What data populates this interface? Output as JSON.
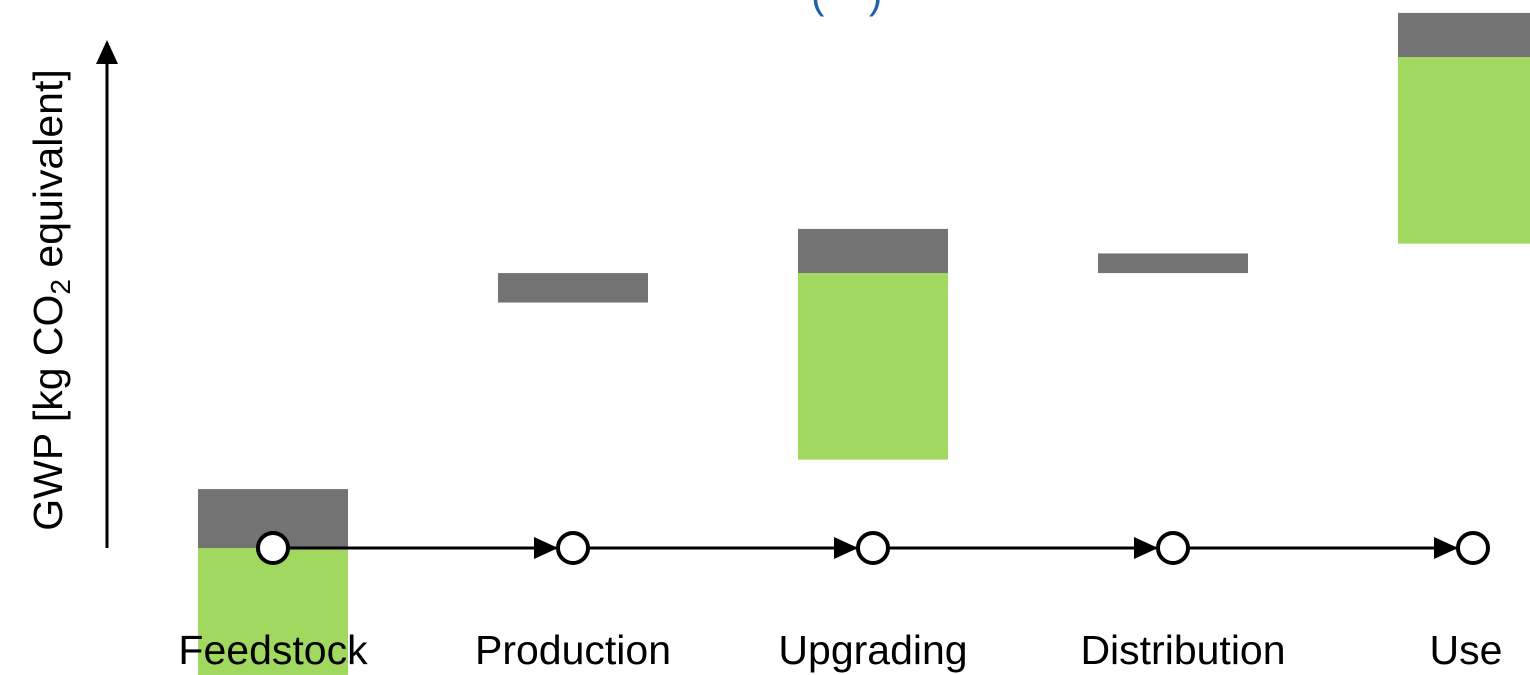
{
  "chart_data": {
    "type": "bar",
    "title": "",
    "xlabel": "",
    "ylabel": {
      "prefix": "GWP [kg CO",
      "subscript": "2",
      "suffix": " equivalent]"
    },
    "categories": [
      "Feedstock",
      "Production",
      "Upgrading",
      "Distribution",
      "Use"
    ],
    "ylim": [
      -26,
      110
    ],
    "series": [
      {
        "color": "#a0d860",
        "start": [
          0,
          56,
          18,
          60,
          62
        ],
        "end": [
          -26,
          56,
          56,
          60,
          100
        ]
      },
      {
        "color": "#737373",
        "start": [
          12,
          56,
          65,
          56,
          100
        ],
        "end": [
          0,
          50,
          56,
          60,
          109
        ]
      }
    ],
    "axis_color": "#000000",
    "node_fill": "#ffffff",
    "top_fragment": "— (    )"
  }
}
